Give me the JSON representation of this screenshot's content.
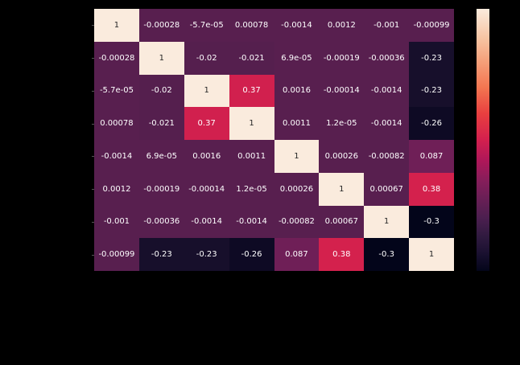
{
  "chart_data": {
    "type": "heatmap",
    "title": "",
    "xlabel": "",
    "ylabel": "",
    "x_tick_labels": [],
    "y_tick_labels": [],
    "colormap": "rocket",
    "vmin": -0.3,
    "vmax": 1,
    "colorbar_ticks": [],
    "matrix": [
      [
        "1",
        "-0.00028",
        "-5.7e-05",
        "0.00078",
        "-0.0014",
        "0.0012",
        "-0.001",
        "-0.00099"
      ],
      [
        "-0.00028",
        "1",
        "-0.02",
        "-0.021",
        "6.9e-05",
        "-0.00019",
        "-0.00036",
        "-0.23"
      ],
      [
        "-5.7e-05",
        "-0.02",
        "1",
        "0.37",
        "0.0016",
        "-0.00014",
        "-0.0014",
        "-0.23"
      ],
      [
        "0.00078",
        "-0.021",
        "0.37",
        "1",
        "0.0011",
        "1.2e-05",
        "-0.0014",
        "-0.26"
      ],
      [
        "-0.0014",
        "6.9e-05",
        "0.0016",
        "0.0011",
        "1",
        "0.00026",
        "-0.00082",
        "0.087"
      ],
      [
        "0.0012",
        "-0.00019",
        "-0.00014",
        "1.2e-05",
        "0.00026",
        "1",
        "0.00067",
        "0.38"
      ],
      [
        "-0.001",
        "-0.00036",
        "-0.0014",
        "-0.0014",
        "-0.00082",
        "0.00067",
        "1",
        "-0.3"
      ],
      [
        "-0.00099",
        "-0.23",
        "-0.23",
        "-0.26",
        "0.087",
        "0.38",
        "-0.3",
        "1"
      ]
    ],
    "values": [
      [
        1,
        -0.00028,
        -5.7e-05,
        0.00078,
        -0.0014,
        0.0012,
        -0.001,
        -0.00099
      ],
      [
        -0.00028,
        1,
        -0.02,
        -0.021,
        6.9e-05,
        -0.00019,
        -0.00036,
        -0.23
      ],
      [
        -5.7e-05,
        -0.02,
        1,
        0.37,
        0.0016,
        -0.00014,
        -0.0014,
        -0.23
      ],
      [
        0.00078,
        -0.021,
        0.37,
        1,
        0.0011,
        1.2e-05,
        -0.0014,
        -0.26
      ],
      [
        -0.0014,
        6.9e-05,
        0.0016,
        0.0011,
        1,
        0.00026,
        -0.00082,
        0.087
      ],
      [
        0.0012,
        -0.00019,
        -0.00014,
        1.2e-05,
        0.00026,
        1,
        0.00067,
        0.38
      ],
      [
        -0.001,
        -0.00036,
        -0.0014,
        -0.0014,
        -0.00082,
        0.00067,
        1,
        -0.3
      ],
      [
        -0.00099,
        -0.23,
        -0.23,
        -0.26,
        0.087,
        0.38,
        -0.3,
        1
      ]
    ],
    "cell_colors": {
      "1": "#faebdd",
      "near_zero": "#581f4f",
      "0.37": "#d3204e",
      "0.38": "#d3204e",
      "0.087": "#6f1f57",
      "-0.02": "#551f4e",
      "-0.021": "#551f4e",
      "-0.23": "#170f2b",
      "-0.26": "#0e0a24",
      "-0.3": "#03051a"
    },
    "background": "#000000",
    "legend_position": "right"
  }
}
